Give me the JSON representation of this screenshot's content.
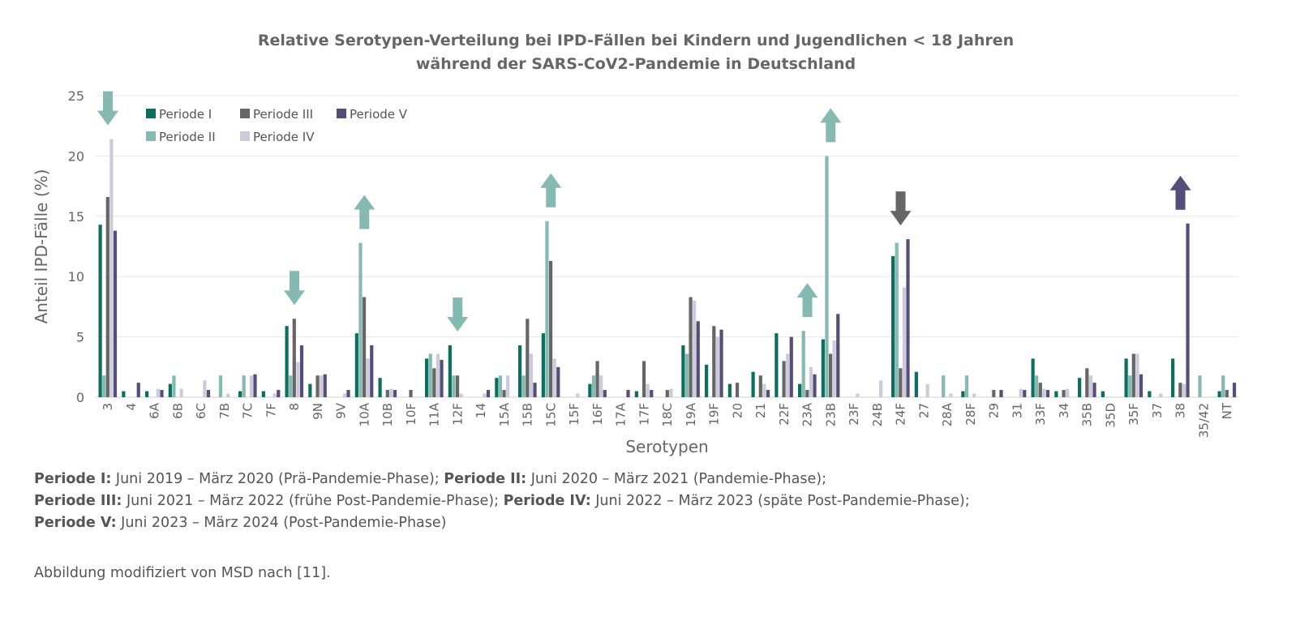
{
  "chart_data": {
    "type": "bar",
    "title": [
      "Relative Serotypen-Verteilung bei IPD-Fällen bei Kindern und Jugendlichen < 18 Jahren",
      "während der SARS-CoV2-Pandemie in Deutschland"
    ],
    "xlabel": "Serotypen",
    "ylabel": "Anteil IPD-Fälle (%)",
    "ylim": [
      0,
      25
    ],
    "yticks": [
      0,
      5,
      10,
      15,
      20,
      25
    ],
    "grid": true,
    "legend": "top-left",
    "categories": [
      "3",
      "4",
      "6A",
      "6B",
      "6C",
      "7B",
      "7C",
      "7F",
      "8",
      "9N",
      "9V",
      "10A",
      "10B",
      "10F",
      "11A",
      "12F",
      "14",
      "15A",
      "15B",
      "15C",
      "15F",
      "16F",
      "17A",
      "17F",
      "18C",
      "19A",
      "19F",
      "20",
      "21",
      "22F",
      "23A",
      "23B",
      "23F",
      "24B",
      "24F",
      "27",
      "28A",
      "28F",
      "29",
      "31",
      "33F",
      "34",
      "35B",
      "35D",
      "35F",
      "37",
      "38",
      "35/42",
      "NT"
    ],
    "series": [
      {
        "name": "Periode I",
        "color": "#0b6e5f",
        "values": [
          14.3,
          0.5,
          0.5,
          1.1,
          0,
          0,
          0.5,
          0.5,
          5.9,
          1.1,
          0,
          5.3,
          1.6,
          0,
          3.2,
          4.3,
          0,
          1.6,
          4.3,
          5.3,
          0,
          1.1,
          0,
          0.5,
          0,
          4.3,
          2.7,
          1.1,
          2.1,
          5.3,
          1.1,
          4.8,
          0,
          0,
          11.7,
          2.1,
          0,
          0.5,
          0,
          0,
          3.2,
          0.5,
          1.6,
          0.5,
          3.2,
          0.5,
          3.2,
          0,
          0.5
        ]
      },
      {
        "name": "Periode II",
        "color": "#84bab1",
        "values": [
          1.8,
          0,
          0,
          1.8,
          0,
          1.8,
          1.8,
          0,
          1.8,
          0,
          0,
          12.8,
          0,
          0,
          3.6,
          1.8,
          0,
          1.8,
          1.8,
          14.6,
          0,
          1.8,
          0,
          0,
          0,
          3.6,
          0,
          0,
          0,
          0,
          5.5,
          20.0,
          0,
          0,
          12.8,
          0,
          1.8,
          1.8,
          0,
          0,
          1.8,
          0,
          0,
          0,
          1.8,
          0,
          0,
          1.8,
          1.8
        ]
      },
      {
        "name": "Periode III",
        "color": "#666666",
        "values": [
          16.6,
          0,
          0,
          0,
          0,
          0,
          0,
          0,
          6.5,
          1.8,
          0,
          8.3,
          0.6,
          0.6,
          2.4,
          1.8,
          0,
          0.6,
          6.5,
          11.3,
          0,
          3.0,
          0,
          3.0,
          0.6,
          8.3,
          5.9,
          1.2,
          1.8,
          3.0,
          0.6,
          3.6,
          0,
          0,
          2.4,
          0,
          0,
          0,
          0.6,
          0,
          1.2,
          0.6,
          2.4,
          0,
          3.6,
          0,
          1.2,
          0,
          0.6
        ]
      },
      {
        "name": "Periode IV",
        "color": "#cccbdc",
        "values": [
          21.4,
          0,
          0.7,
          0.7,
          1.4,
          0.3,
          1.8,
          0.3,
          2.9,
          1.8,
          0.3,
          3.2,
          0.7,
          0,
          3.6,
          0.3,
          0.3,
          1.8,
          3.6,
          3.2,
          0.3,
          1.8,
          0,
          1.1,
          0.7,
          8.0,
          5.0,
          0,
          1.1,
          3.6,
          2.5,
          4.7,
          0.3,
          1.4,
          9.1,
          1.1,
          0.3,
          0.3,
          0,
          0.7,
          0.7,
          0.7,
          1.8,
          0,
          3.6,
          0.3,
          1.1,
          0,
          0
        ]
      },
      {
        "name": "Periode V",
        "color": "#554d7a",
        "values": [
          13.8,
          1.2,
          0.6,
          0,
          0.6,
          0,
          1.9,
          0.6,
          4.3,
          1.9,
          0.6,
          4.3,
          0.6,
          0,
          3.1,
          0,
          0.6,
          0,
          1.2,
          2.5,
          0,
          0.6,
          0.6,
          0.6,
          0,
          6.3,
          5.6,
          0,
          0.6,
          5.0,
          1.9,
          6.9,
          0,
          0,
          13.1,
          0,
          0,
          0,
          0.6,
          0.6,
          0.6,
          0,
          1.2,
          0,
          1.9,
          0,
          14.4,
          0,
          1.2
        ]
      }
    ],
    "annotations": [
      {
        "category": "3",
        "type": "arrow",
        "direction": "down",
        "color": "#84bab1"
      },
      {
        "category": "8",
        "type": "arrow",
        "direction": "down",
        "color": "#84bab1"
      },
      {
        "category": "10A",
        "type": "arrow",
        "direction": "up",
        "color": "#84bab1"
      },
      {
        "category": "12F",
        "type": "arrow",
        "direction": "down",
        "color": "#84bab1"
      },
      {
        "category": "15C",
        "type": "arrow",
        "direction": "up",
        "color": "#84bab1"
      },
      {
        "category": "23A",
        "type": "arrow",
        "direction": "up",
        "color": "#84bab1"
      },
      {
        "category": "23B",
        "type": "arrow",
        "direction": "up",
        "color": "#84bab1"
      },
      {
        "category": "24F",
        "type": "arrow",
        "direction": "down",
        "color": "#666666"
      },
      {
        "category": "38",
        "type": "arrow",
        "direction": "up",
        "color": "#554d7a"
      }
    ]
  },
  "notes": [
    [
      {
        "b": "Periode I:",
        "t": " Juni 2019 – März 2020 (Prä-Pandemie-Phase); "
      },
      {
        "b": "Periode II:",
        "t": " Juni 2020 – März 2021 (Pandemie-Phase);"
      }
    ],
    [
      {
        "b": "Periode III:",
        "t": " Juni 2021 – März 2022 (frühe Post-Pandemie-Phase); "
      },
      {
        "b": "Periode IV:",
        "t": " Juni 2022 – März 2023 (späte Post-Pandemie-Phase);"
      }
    ],
    [
      {
        "b": "Periode V:",
        "t": " Juni 2023 – März 2024 (Post-Pandemie-Phase)"
      }
    ]
  ],
  "source": "Abbildung modifiziert von MSD nach [11]."
}
